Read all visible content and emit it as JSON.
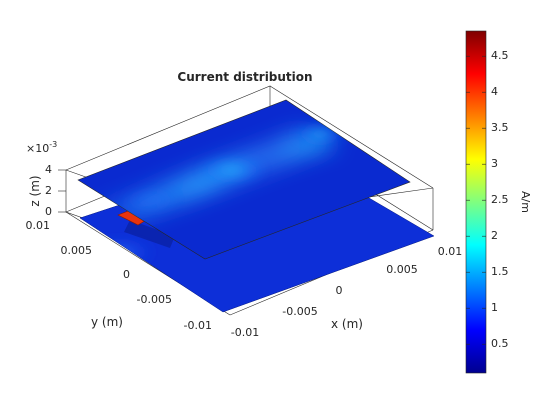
{
  "chart_data": {
    "type": "3d-surface",
    "title": "Current distribution",
    "xlabel": "x (m)",
    "ylabel": "y (m)",
    "zlabel": "z (m)",
    "x_ticks": [
      "-0.01",
      "-0.005",
      "0",
      "0.005",
      "0.01"
    ],
    "y_ticks": [
      "0.01",
      "0.005",
      "0",
      "-0.005",
      "-0.01"
    ],
    "z_ticks": [
      "0",
      "2",
      "4"
    ],
    "z_exponent": "×10",
    "z_exponent_power": "-3",
    "xlim": [
      -0.01,
      0.01
    ],
    "ylim": [
      -0.01,
      0.01
    ],
    "zlim": [
      0,
      0.004
    ],
    "colorbar": {
      "label": "A/m",
      "ticks": [
        "0.5",
        "1",
        "1.5",
        "2",
        "2.5",
        "3",
        "3.5",
        "4",
        "4.5"
      ],
      "tick_values": [
        0.5,
        1,
        1.5,
        2,
        2.5,
        3,
        3.5,
        4,
        4.5
      ],
      "range": [
        0.1,
        4.85
      ],
      "colormap": "jet"
    },
    "layers": [
      {
        "name": "upper-plate",
        "z": 0.0032,
        "value_range": [
          0.2,
          1.6
        ]
      },
      {
        "name": "ground-plane",
        "z": 0.0,
        "value_range": [
          0.2,
          1.2
        ]
      },
      {
        "name": "feed",
        "value": 4.8
      }
    ]
  }
}
